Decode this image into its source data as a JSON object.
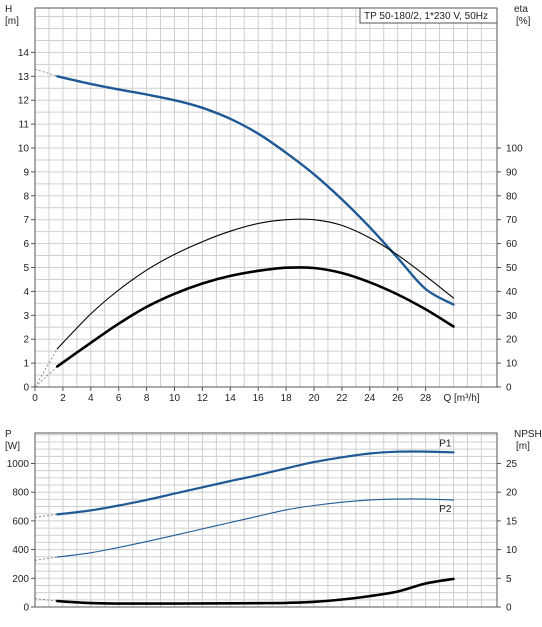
{
  "chart_data": [
    {
      "type": "line",
      "title": "TP 50-180/2, 1*230 V, 50Hz",
      "y_left_label": [
        "H",
        "[m]"
      ],
      "y_right_label": [
        "eta",
        "[%]"
      ],
      "x_label": "Q [m³/h]",
      "x_ticks": [
        0,
        2,
        4,
        6,
        8,
        10,
        12,
        14,
        16,
        18,
        20,
        22,
        24,
        26,
        28
      ],
      "x_range": [
        0,
        33
      ],
      "y_left_ticks": [
        0,
        1,
        2,
        3,
        4,
        5,
        6,
        7,
        8,
        9,
        10,
        11,
        12,
        13,
        14
      ],
      "y_left_range": [
        0,
        15.8
      ],
      "y_right_ticks": [
        0,
        10,
        20,
        30,
        40,
        50,
        60,
        70,
        80,
        90,
        100
      ],
      "grid": true,
      "series": [
        {
          "id": "H",
          "axis": "left",
          "color": "#1f5a96",
          "x": [
            1.6,
            4,
            6,
            8,
            10,
            12,
            14,
            16,
            18,
            20,
            22,
            24,
            26,
            28,
            30
          ],
          "y": [
            13.0,
            12.68,
            12.45,
            12.24,
            12.0,
            11.68,
            11.22,
            10.6,
            9.8,
            8.9,
            7.85,
            6.68,
            5.4,
            4.1,
            3.45
          ],
          "extrapolation": {
            "x": [
              0,
              1.6
            ],
            "y": [
              13.3,
              13.0
            ]
          }
        },
        {
          "id": "eta-thin",
          "axis": "right",
          "color": "#000000",
          "x": [
            1.6,
            4,
            6,
            8,
            10,
            12,
            14,
            16,
            18,
            20,
            22,
            24,
            26,
            28,
            30
          ],
          "y": [
            16,
            30.6,
            40.6,
            48.9,
            55.5,
            60.8,
            65.2,
            68.4,
            70.0,
            70.0,
            67.6,
            62.4,
            55.2,
            46.5,
            37.2
          ],
          "extrapolation": {
            "x": [
              0,
              1.6
            ],
            "y": [
              0,
              16
            ]
          }
        },
        {
          "id": "eta-thick",
          "axis": "right",
          "color": "#000000",
          "x": [
            1.6,
            4,
            6,
            8,
            10,
            12,
            14,
            16,
            18,
            20,
            22,
            24,
            26,
            28,
            30
          ],
          "y": [
            8.6,
            18.5,
            26.5,
            33.5,
            39.0,
            43.3,
            46.5,
            48.6,
            49.9,
            49.8,
            47.7,
            43.8,
            38.7,
            32.5,
            25.3
          ],
          "extrapolation": {
            "x": [
              0,
              1.6
            ],
            "y": [
              0,
              8.6
            ]
          }
        }
      ]
    },
    {
      "type": "line",
      "y_left_label": [
        "P",
        "[W]"
      ],
      "y_right_label": [
        "NPSH",
        "[m]"
      ],
      "x_range": [
        0,
        33
      ],
      "y_left_ticks": [
        0,
        200,
        400,
        600,
        800,
        1000
      ],
      "y_left_range": [
        0,
        1210
      ],
      "y_right_ticks": [
        0,
        5,
        10,
        15,
        20,
        25
      ],
      "grid": true,
      "series": [
        {
          "id": "P1",
          "name": "P1",
          "axis": "left",
          "color": "#1f5a96",
          "x": [
            1.6,
            4,
            6,
            8,
            10,
            12,
            14,
            16,
            18,
            20,
            22,
            24,
            26,
            28,
            30
          ],
          "y": [
            645,
            673,
            707,
            746,
            790,
            834,
            878,
            920,
            966,
            1010,
            1043,
            1070,
            1082,
            1083,
            1078
          ],
          "extrapolation": {
            "x": [
              0,
              1.6
            ],
            "y": [
              625,
              645
            ]
          }
        },
        {
          "id": "P2",
          "name": "P2",
          "axis": "left",
          "color": "#1f5a96",
          "x": [
            1.6,
            4,
            6,
            8,
            10,
            12,
            14,
            16,
            18,
            20,
            22,
            24,
            26,
            28,
            30
          ],
          "y": [
            348,
            378,
            415,
            456,
            500,
            544,
            589,
            633,
            677,
            707,
            730,
            746,
            752,
            752,
            745
          ],
          "extrapolation": {
            "x": [
              0,
              1.6
            ],
            "y": [
              325,
              348
            ]
          }
        },
        {
          "id": "NPSH",
          "axis": "right",
          "color": "#000000",
          "x": [
            1.6,
            4,
            6,
            8,
            10,
            12,
            14,
            16,
            18,
            20,
            22,
            24,
            26,
            28,
            30
          ],
          "y": [
            1.02,
            0.68,
            0.6,
            0.6,
            0.6,
            0.62,
            0.64,
            0.66,
            0.72,
            0.9,
            1.3,
            1.9,
            2.7,
            4.1,
            4.9
          ],
          "extrapolation": {
            "x": [
              0,
              1.6
            ],
            "y": [
              1.5,
              1.02
            ]
          }
        }
      ]
    }
  ]
}
